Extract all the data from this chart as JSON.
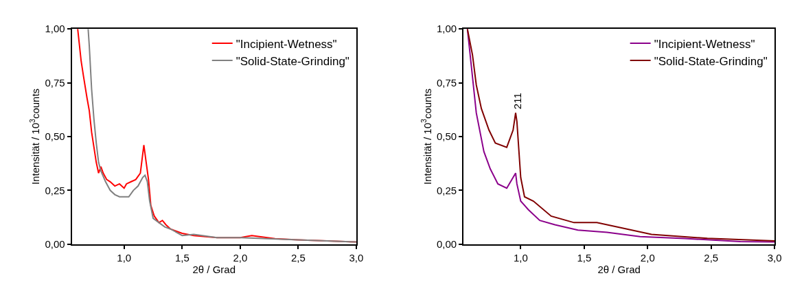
{
  "chart_data": [
    {
      "type": "line",
      "xlabel": "2θ / Grad",
      "ylabel": "Intensität / 10$^{3}$counts",
      "legend": "top right",
      "xlim": [
        0.55,
        3.0
      ],
      "ylim": [
        0,
        1.0
      ],
      "xticks": [
        {
          "value": 1.0,
          "label": "1,0"
        },
        {
          "value": 1.5,
          "label": "1,5"
        },
        {
          "value": 2.0,
          "label": "2,0"
        },
        {
          "value": 2.5,
          "label": "2,5"
        },
        {
          "value": 3.0,
          "label": "3,0"
        }
      ],
      "yticks": [
        {
          "value": 0,
          "label": "0,00"
        },
        {
          "value": 0.25,
          "label": "0,25"
        },
        {
          "value": 0.5,
          "label": "0,50"
        },
        {
          "value": 0.75,
          "label": "0,75"
        },
        {
          "value": 1.0,
          "label": "1,00"
        }
      ],
      "series": [
        {
          "name": "\"Incipient-Wetness\"",
          "color": "#ff0000",
          "x": [
            0.6,
            0.63,
            0.65,
            0.68,
            0.7,
            0.72,
            0.74,
            0.76,
            0.78,
            0.8,
            0.82,
            0.85,
            0.88,
            0.92,
            0.96,
            1.0,
            1.02,
            1.06,
            1.1,
            1.14,
            1.17,
            1.19,
            1.21,
            1.23,
            1.26,
            1.3,
            1.33,
            1.36,
            1.4,
            1.5,
            1.6,
            1.8,
            2.0,
            2.1,
            2.3,
            2.5,
            2.75,
            3.0
          ],
          "values": [
            1.0,
            0.85,
            0.78,
            0.68,
            0.62,
            0.52,
            0.45,
            0.38,
            0.33,
            0.36,
            0.33,
            0.3,
            0.29,
            0.27,
            0.28,
            0.26,
            0.28,
            0.29,
            0.3,
            0.33,
            0.46,
            0.38,
            0.3,
            0.18,
            0.13,
            0.1,
            0.11,
            0.09,
            0.07,
            0.05,
            0.04,
            0.03,
            0.03,
            0.04,
            0.025,
            0.02,
            0.015,
            0.01
          ]
        },
        {
          "name": "\"Solid-State-Grinding\"",
          "color": "#808080",
          "x": [
            0.69,
            0.7,
            0.72,
            0.74,
            0.76,
            0.78,
            0.8,
            0.84,
            0.88,
            0.92,
            0.96,
            1.0,
            1.04,
            1.08,
            1.12,
            1.16,
            1.18,
            1.2,
            1.22,
            1.25,
            1.3,
            1.35,
            1.4,
            1.5,
            1.6,
            1.8,
            2.0,
            2.5,
            3.0
          ],
          "values": [
            1.0,
            0.92,
            0.72,
            0.58,
            0.47,
            0.38,
            0.34,
            0.29,
            0.25,
            0.23,
            0.22,
            0.22,
            0.22,
            0.25,
            0.27,
            0.31,
            0.32,
            0.29,
            0.2,
            0.12,
            0.1,
            0.08,
            0.07,
            0.04,
            0.045,
            0.03,
            0.03,
            0.02,
            0.01
          ]
        }
      ]
    },
    {
      "type": "line",
      "xlabel": "2θ / Grad",
      "ylabel": "Intensität / 10$^{3}$counts",
      "legend": "top right",
      "xlim": [
        0.55,
        3.0
      ],
      "ylim": [
        0,
        1.0
      ],
      "xticks": [
        {
          "value": 1.0,
          "label": "1,0"
        },
        {
          "value": 1.5,
          "label": "1,5"
        },
        {
          "value": 2.0,
          "label": "2,0"
        },
        {
          "value": 2.5,
          "label": "2,5"
        },
        {
          "value": 3.0,
          "label": "3,0"
        }
      ],
      "yticks": [
        {
          "value": 0,
          "label": "0,00"
        },
        {
          "value": 0.25,
          "label": "0,25"
        },
        {
          "value": 0.5,
          "label": "0,50"
        },
        {
          "value": 0.75,
          "label": "0,75"
        },
        {
          "value": 1.0,
          "label": "1,00"
        }
      ],
      "annotations": [
        {
          "text": "211",
          "x": 0.97,
          "y": 0.62
        }
      ],
      "series": [
        {
          "name": "\"Incipient-Wetness\"",
          "color": "#8b008b",
          "x": [
            0.58,
            0.65,
            0.71,
            0.76,
            0.82,
            0.89,
            0.96,
            0.97,
            1.0,
            1.06,
            1.15,
            1.27,
            1.45,
            1.68,
            1.94,
            2.29,
            2.73,
            3.0
          ],
          "values": [
            1.0,
            0.61,
            0.43,
            0.35,
            0.28,
            0.26,
            0.33,
            0.28,
            0.2,
            0.16,
            0.11,
            0.09,
            0.065,
            0.055,
            0.035,
            0.026,
            0.012,
            0.01
          ]
        },
        {
          "name": "\"Solid-State-Grinding\"",
          "color": "#800000",
          "x": [
            0.58,
            0.62,
            0.65,
            0.69,
            0.75,
            0.8,
            0.89,
            0.94,
            0.96,
            0.97,
            1.0,
            1.03,
            1.1,
            1.24,
            1.42,
            1.6,
            1.8,
            2.03,
            2.47,
            3.0
          ],
          "values": [
            1.0,
            0.88,
            0.74,
            0.63,
            0.53,
            0.47,
            0.45,
            0.53,
            0.61,
            0.57,
            0.31,
            0.22,
            0.2,
            0.13,
            0.1,
            0.1,
            0.075,
            0.045,
            0.027,
            0.015
          ]
        }
      ]
    }
  ]
}
